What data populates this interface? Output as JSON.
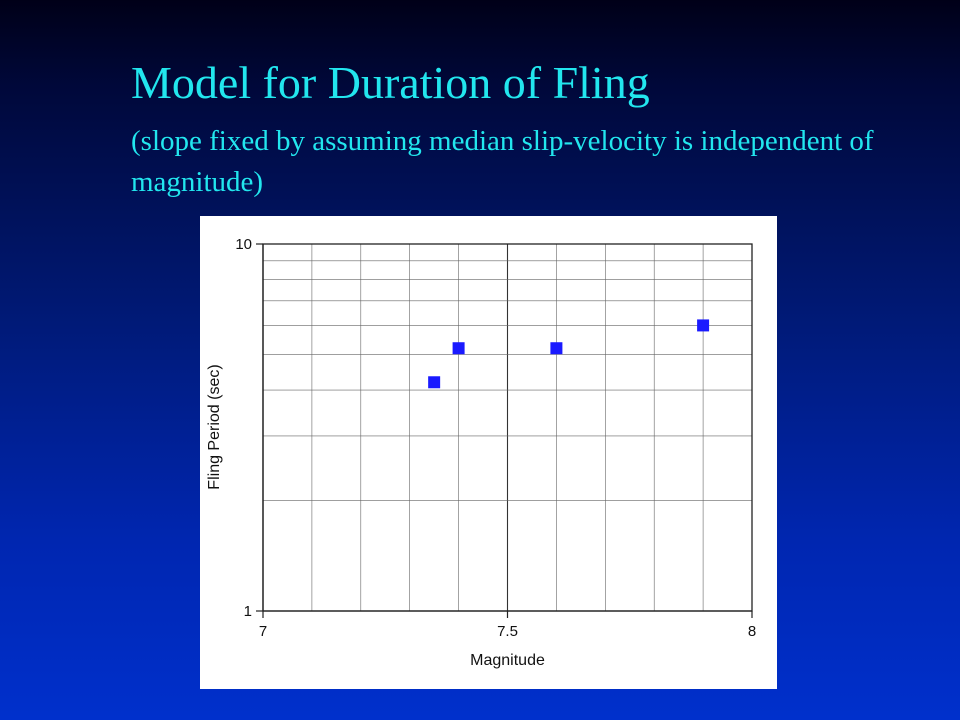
{
  "slide": {
    "title": "Model for Duration of Fling",
    "subtitle": "(slope fixed by assuming median slip-velocity is independent of magnitude)"
  },
  "chart_data": {
    "type": "scatter",
    "xlabel": "Magnitude",
    "ylabel": "Fling Period (sec)",
    "xlim": [
      7,
      8
    ],
    "ylim": [
      1,
      10
    ],
    "yscale": "log",
    "x_ticks": [
      "7",
      "7.5",
      "8"
    ],
    "y_ticks": [
      "1",
      "10"
    ],
    "grid": true,
    "marker_color": "#1a1aff",
    "points": [
      {
        "x": 7.35,
        "y": 4.2
      },
      {
        "x": 7.4,
        "y": 5.2
      },
      {
        "x": 7.6,
        "y": 5.2
      },
      {
        "x": 7.9,
        "y": 6.0
      }
    ]
  }
}
